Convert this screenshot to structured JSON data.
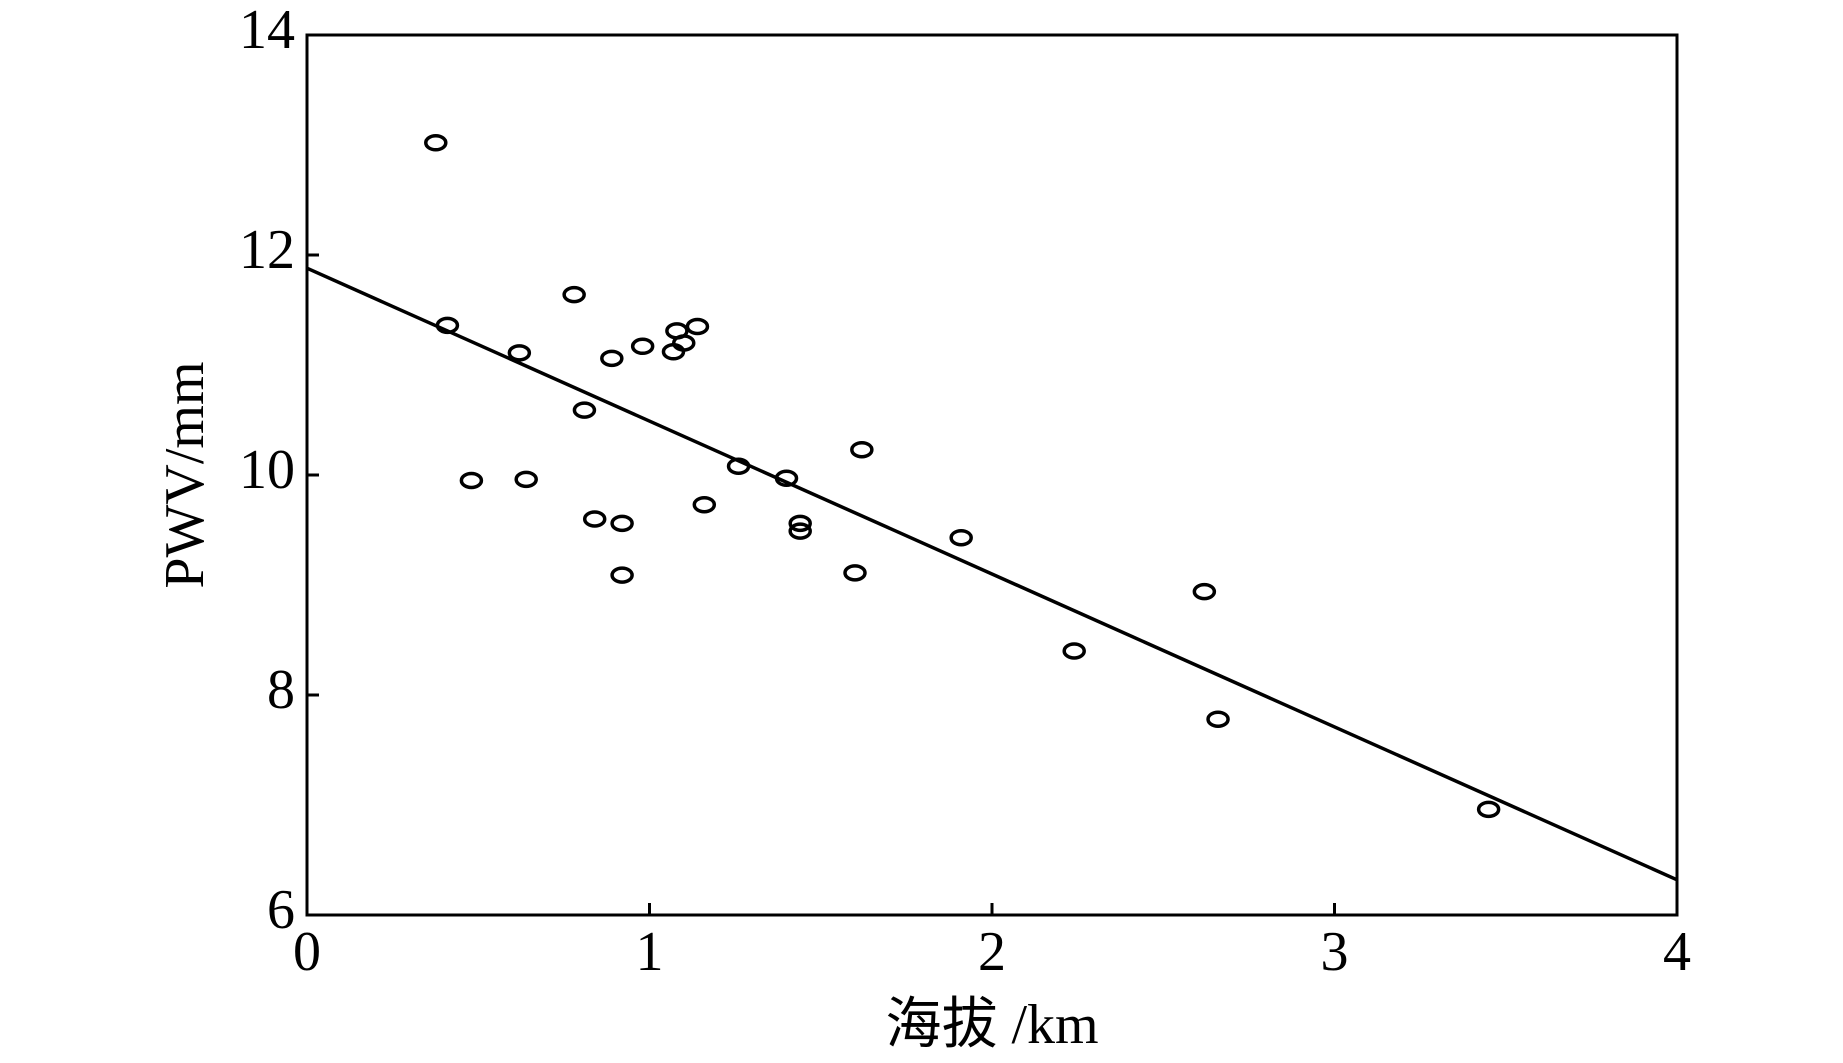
{
  "chart_data": {
    "type": "scatter",
    "x_label": "海拔 /km",
    "y_label": "PWV/mm",
    "xlim": [
      0,
      4
    ],
    "xticks": [
      0,
      1,
      2,
      3,
      4
    ],
    "ylim": [
      6,
      14
    ],
    "yticks": [
      6,
      8,
      10,
      12,
      14
    ],
    "color": "#000000",
    "x": [
      0.376,
      0.41,
      0.48,
      0.62,
      0.64,
      0.78,
      0.81,
      0.84,
      0.89,
      0.92,
      0.92,
      0.98,
      1.07,
      1.08,
      1.1,
      1.14,
      1.16,
      1.26,
      1.4,
      1.44,
      1.44,
      1.6,
      1.62,
      1.91,
      2.24,
      2.62,
      2.66,
      3.45
    ],
    "values": [
      13.02,
      11.36,
      9.95,
      11.11,
      9.96,
      11.64,
      10.59,
      9.6,
      11.06,
      9.56,
      9.09,
      11.17,
      11.12,
      11.31,
      11.2,
      11.35,
      9.73,
      10.08,
      9.97,
      9.56,
      9.49,
      9.11,
      10.23,
      9.43,
      8.4,
      8.94,
      7.78,
      6.96
    ],
    "fit_line": {
      "x": [
        0,
        4
      ],
      "values": [
        11.88,
        6.32
      ]
    }
  }
}
